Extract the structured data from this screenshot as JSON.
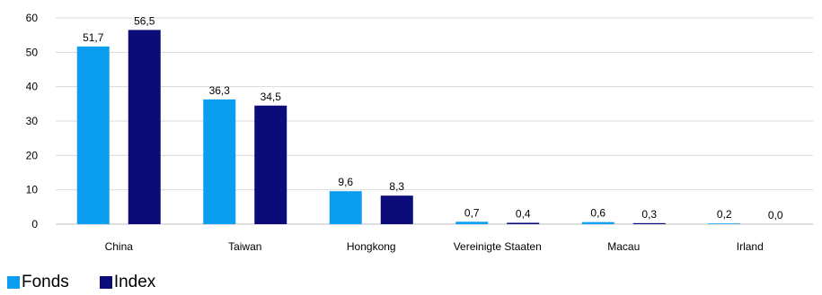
{
  "chart_data": {
    "type": "bar",
    "categories": [
      "China",
      "Taiwan",
      "Hongkong",
      "Vereinigte Staaten",
      "Macau",
      "Irland"
    ],
    "series": [
      {
        "name": "Fonds",
        "color": "#0b9ef0",
        "values": [
          51.7,
          36.3,
          9.6,
          0.7,
          0.6,
          0.2
        ],
        "labels": [
          "51,7",
          "36,3",
          "9,6",
          "0,7",
          "0,6",
          "0,2"
        ]
      },
      {
        "name": "Index",
        "color": "#0b0b7a",
        "values": [
          56.5,
          34.5,
          8.3,
          0.4,
          0.3,
          0.0
        ],
        "labels": [
          "56,5",
          "34,5",
          "8,3",
          "0,4",
          "0,3",
          "0,0"
        ]
      }
    ],
    "ylim": [
      0,
      60
    ],
    "yticks": [
      0,
      10,
      20,
      30,
      40,
      50,
      60
    ],
    "grid": true,
    "legend": "bottom-left"
  }
}
